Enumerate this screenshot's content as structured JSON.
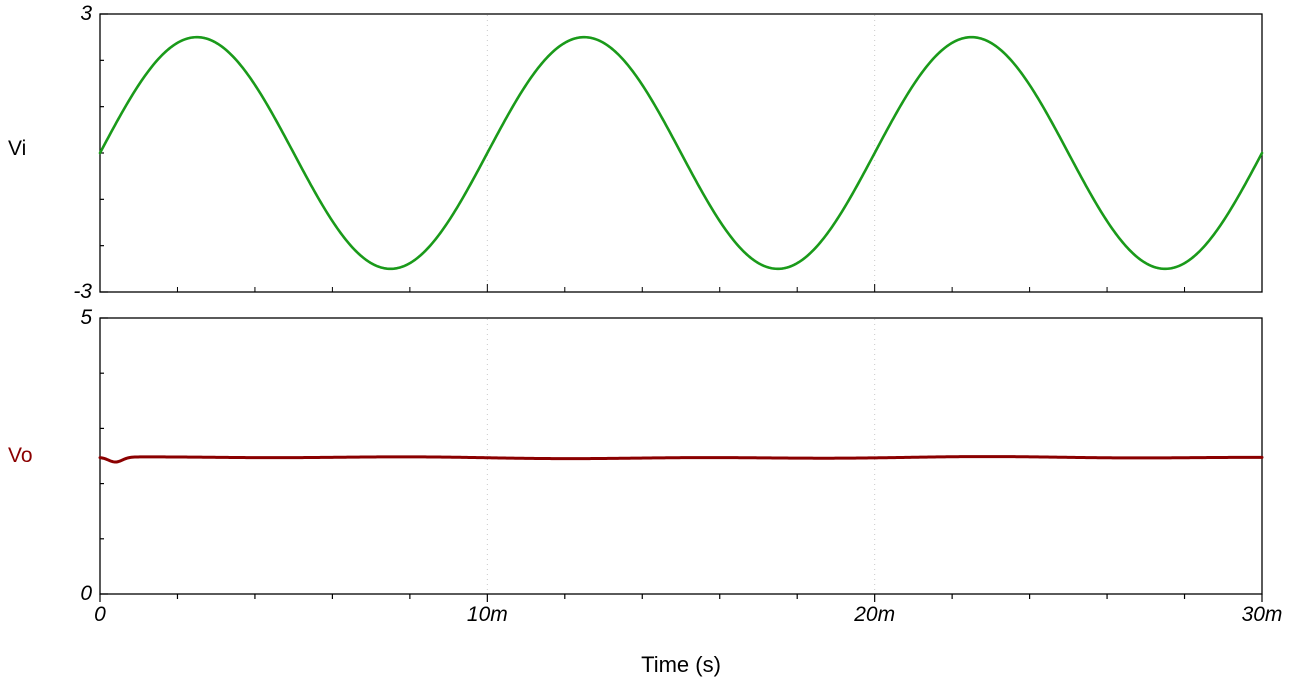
{
  "figure": {
    "background": "#ffffff",
    "frame_color": "#000000",
    "grid_color": "#c9c9c9",
    "grid_style": "dotted"
  },
  "x_axis": {
    "label": "Time (s)",
    "xlim": [
      0,
      0.03
    ],
    "ticks": [
      {
        "value": 0,
        "label": "0"
      },
      {
        "value": 0.01,
        "label": "10m"
      },
      {
        "value": 0.02,
        "label": "20m"
      },
      {
        "value": 0.03,
        "label": "30m"
      }
    ],
    "minor_tick_step": 0.002,
    "gridline_values": [
      0.01,
      0.02
    ]
  },
  "chart_data": [
    {
      "type": "line",
      "panel": "top",
      "ylabel": "Vi",
      "ylabel_color": "#000000",
      "xlim": [
        0,
        0.03
      ],
      "ylim": [
        -3,
        3
      ],
      "yticks": [
        {
          "value": 3,
          "label": "3"
        },
        {
          "value": -3,
          "label": "-3"
        }
      ],
      "minor_ytick_step": 1,
      "grid": true,
      "legend_position": "none",
      "series": [
        {
          "name": "Vi",
          "color": "#1a9a1a",
          "waveform": "sine",
          "amplitude": 2.5,
          "offset": 0,
          "frequency_hz": 100,
          "period_s": 0.01,
          "phase_deg": 0,
          "cycles_shown": 3
        }
      ]
    },
    {
      "type": "line",
      "panel": "bottom",
      "ylabel": "Vo",
      "ylabel_color": "#8b0000",
      "xlim": [
        0,
        0.03
      ],
      "ylim": [
        0,
        5
      ],
      "yticks": [
        {
          "value": 5,
          "label": "5"
        },
        {
          "value": 0,
          "label": "0"
        }
      ],
      "minor_ytick_step": 1,
      "grid": true,
      "legend_position": "none",
      "series": [
        {
          "name": "Vo",
          "color": "#8b0000",
          "waveform": "constant",
          "value": 2.47,
          "ripple_amplitude": 0.02,
          "initial_dip": 0.09
        }
      ]
    }
  ]
}
